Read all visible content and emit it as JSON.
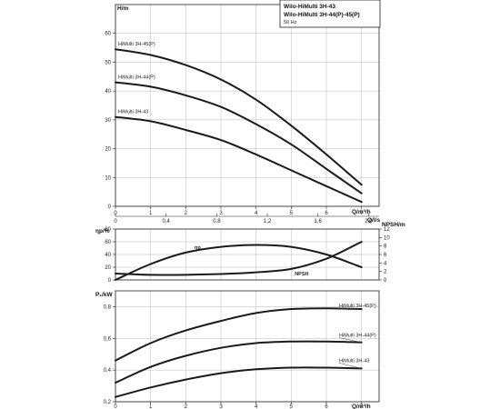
{
  "title_box": {
    "line1": "Wilo-HiMulti 3H-43",
    "line2": "Wilo-HiMulti 3H-44(P)-45(P)",
    "freq": "50 Hz"
  },
  "chart_data": [
    {
      "name": "head",
      "type": "line",
      "ylabel": "H/m",
      "xlabel": "Q/m³/h",
      "xlim": [
        0,
        7.5
      ],
      "ylim": [
        0,
        70
      ],
      "x_ticks": [
        0,
        1,
        2,
        3,
        4,
        5,
        6,
        7
      ],
      "y_ticks": [
        0,
        10,
        20,
        30,
        40,
        50,
        60
      ],
      "secondary_x": {
        "label": "Q/l/s",
        "values": [
          0,
          0.4,
          0.8,
          1.2,
          1.6,
          2.0
        ],
        "tick_labels": [
          "0",
          "0,4",
          "0,8",
          "1,2",
          "1,6",
          "2,0"
        ]
      },
      "series": [
        {
          "name": "HiMulti 3H-45(P)",
          "x": [
            0,
            1,
            2,
            3,
            4,
            5,
            6,
            7
          ],
          "y": [
            54.5,
            52.5,
            49,
            44,
            37,
            28,
            18,
            7.5
          ]
        },
        {
          "name": "HiMulti 3H-44(P)",
          "x": [
            0,
            1,
            2,
            3,
            4,
            5,
            6,
            7
          ],
          "y": [
            43,
            41.5,
            38.5,
            34.5,
            28.5,
            21.5,
            13,
            4.5
          ]
        },
        {
          "name": "HiMulti 3H-43",
          "x": [
            0,
            1,
            2,
            3,
            4,
            5,
            6,
            7
          ],
          "y": [
            31,
            29.5,
            26.5,
            23,
            18,
            12.5,
            7,
            1.5
          ]
        }
      ]
    },
    {
      "name": "efficiency-npsh",
      "type": "line",
      "ylabel": "ηp/%",
      "y2label": "NPSH/m",
      "xlim": [
        0,
        7.5
      ],
      "ylim": [
        0,
        80
      ],
      "y2lim": [
        0,
        12
      ],
      "y_ticks": [
        0,
        20,
        40,
        60,
        80
      ],
      "y2_ticks": [
        0,
        2,
        4,
        6,
        8,
        10,
        12
      ],
      "series": [
        {
          "name": "ηp",
          "axis": "left",
          "x": [
            0,
            1,
            2,
            3,
            4,
            5,
            6,
            7
          ],
          "y": [
            0,
            25,
            43,
            52,
            55,
            52,
            40,
            20
          ]
        },
        {
          "name": "NPSH",
          "axis": "right",
          "x": [
            0,
            1,
            2,
            3,
            4,
            5,
            6,
            7
          ],
          "y": [
            1.5,
            1.2,
            1.2,
            1.4,
            1.8,
            2.6,
            5,
            9
          ]
        }
      ]
    },
    {
      "name": "power",
      "type": "line",
      "ylabel": "P₁/kW",
      "xlabel": "Q/m³/h",
      "xlim": [
        0,
        7.5
      ],
      "ylim": [
        0.2,
        0.9
      ],
      "x_ticks": [
        0,
        1,
        2,
        3,
        4,
        5,
        6,
        7
      ],
      "y_ticks": [
        0.2,
        0.4,
        0.6,
        0.8
      ],
      "y_tick_labels": [
        "0,2",
        "0,4",
        "0,6",
        "0,8"
      ],
      "series": [
        {
          "name": "HiMulti 3H-45(P)",
          "x": [
            0,
            1,
            2,
            3,
            4,
            5,
            6,
            7
          ],
          "y": [
            0.46,
            0.57,
            0.65,
            0.71,
            0.76,
            0.785,
            0.79,
            0.785
          ]
        },
        {
          "name": "HiMulti 3H-44(P)",
          "x": [
            0,
            1,
            2,
            3,
            4,
            5,
            6,
            7
          ],
          "y": [
            0.32,
            0.42,
            0.49,
            0.54,
            0.57,
            0.58,
            0.58,
            0.575
          ]
        },
        {
          "name": "HiMulti 3H-43",
          "x": [
            0,
            1,
            2,
            3,
            4,
            5,
            6,
            7
          ],
          "y": [
            0.23,
            0.29,
            0.34,
            0.38,
            0.405,
            0.415,
            0.415,
            0.41
          ]
        }
      ]
    }
  ]
}
